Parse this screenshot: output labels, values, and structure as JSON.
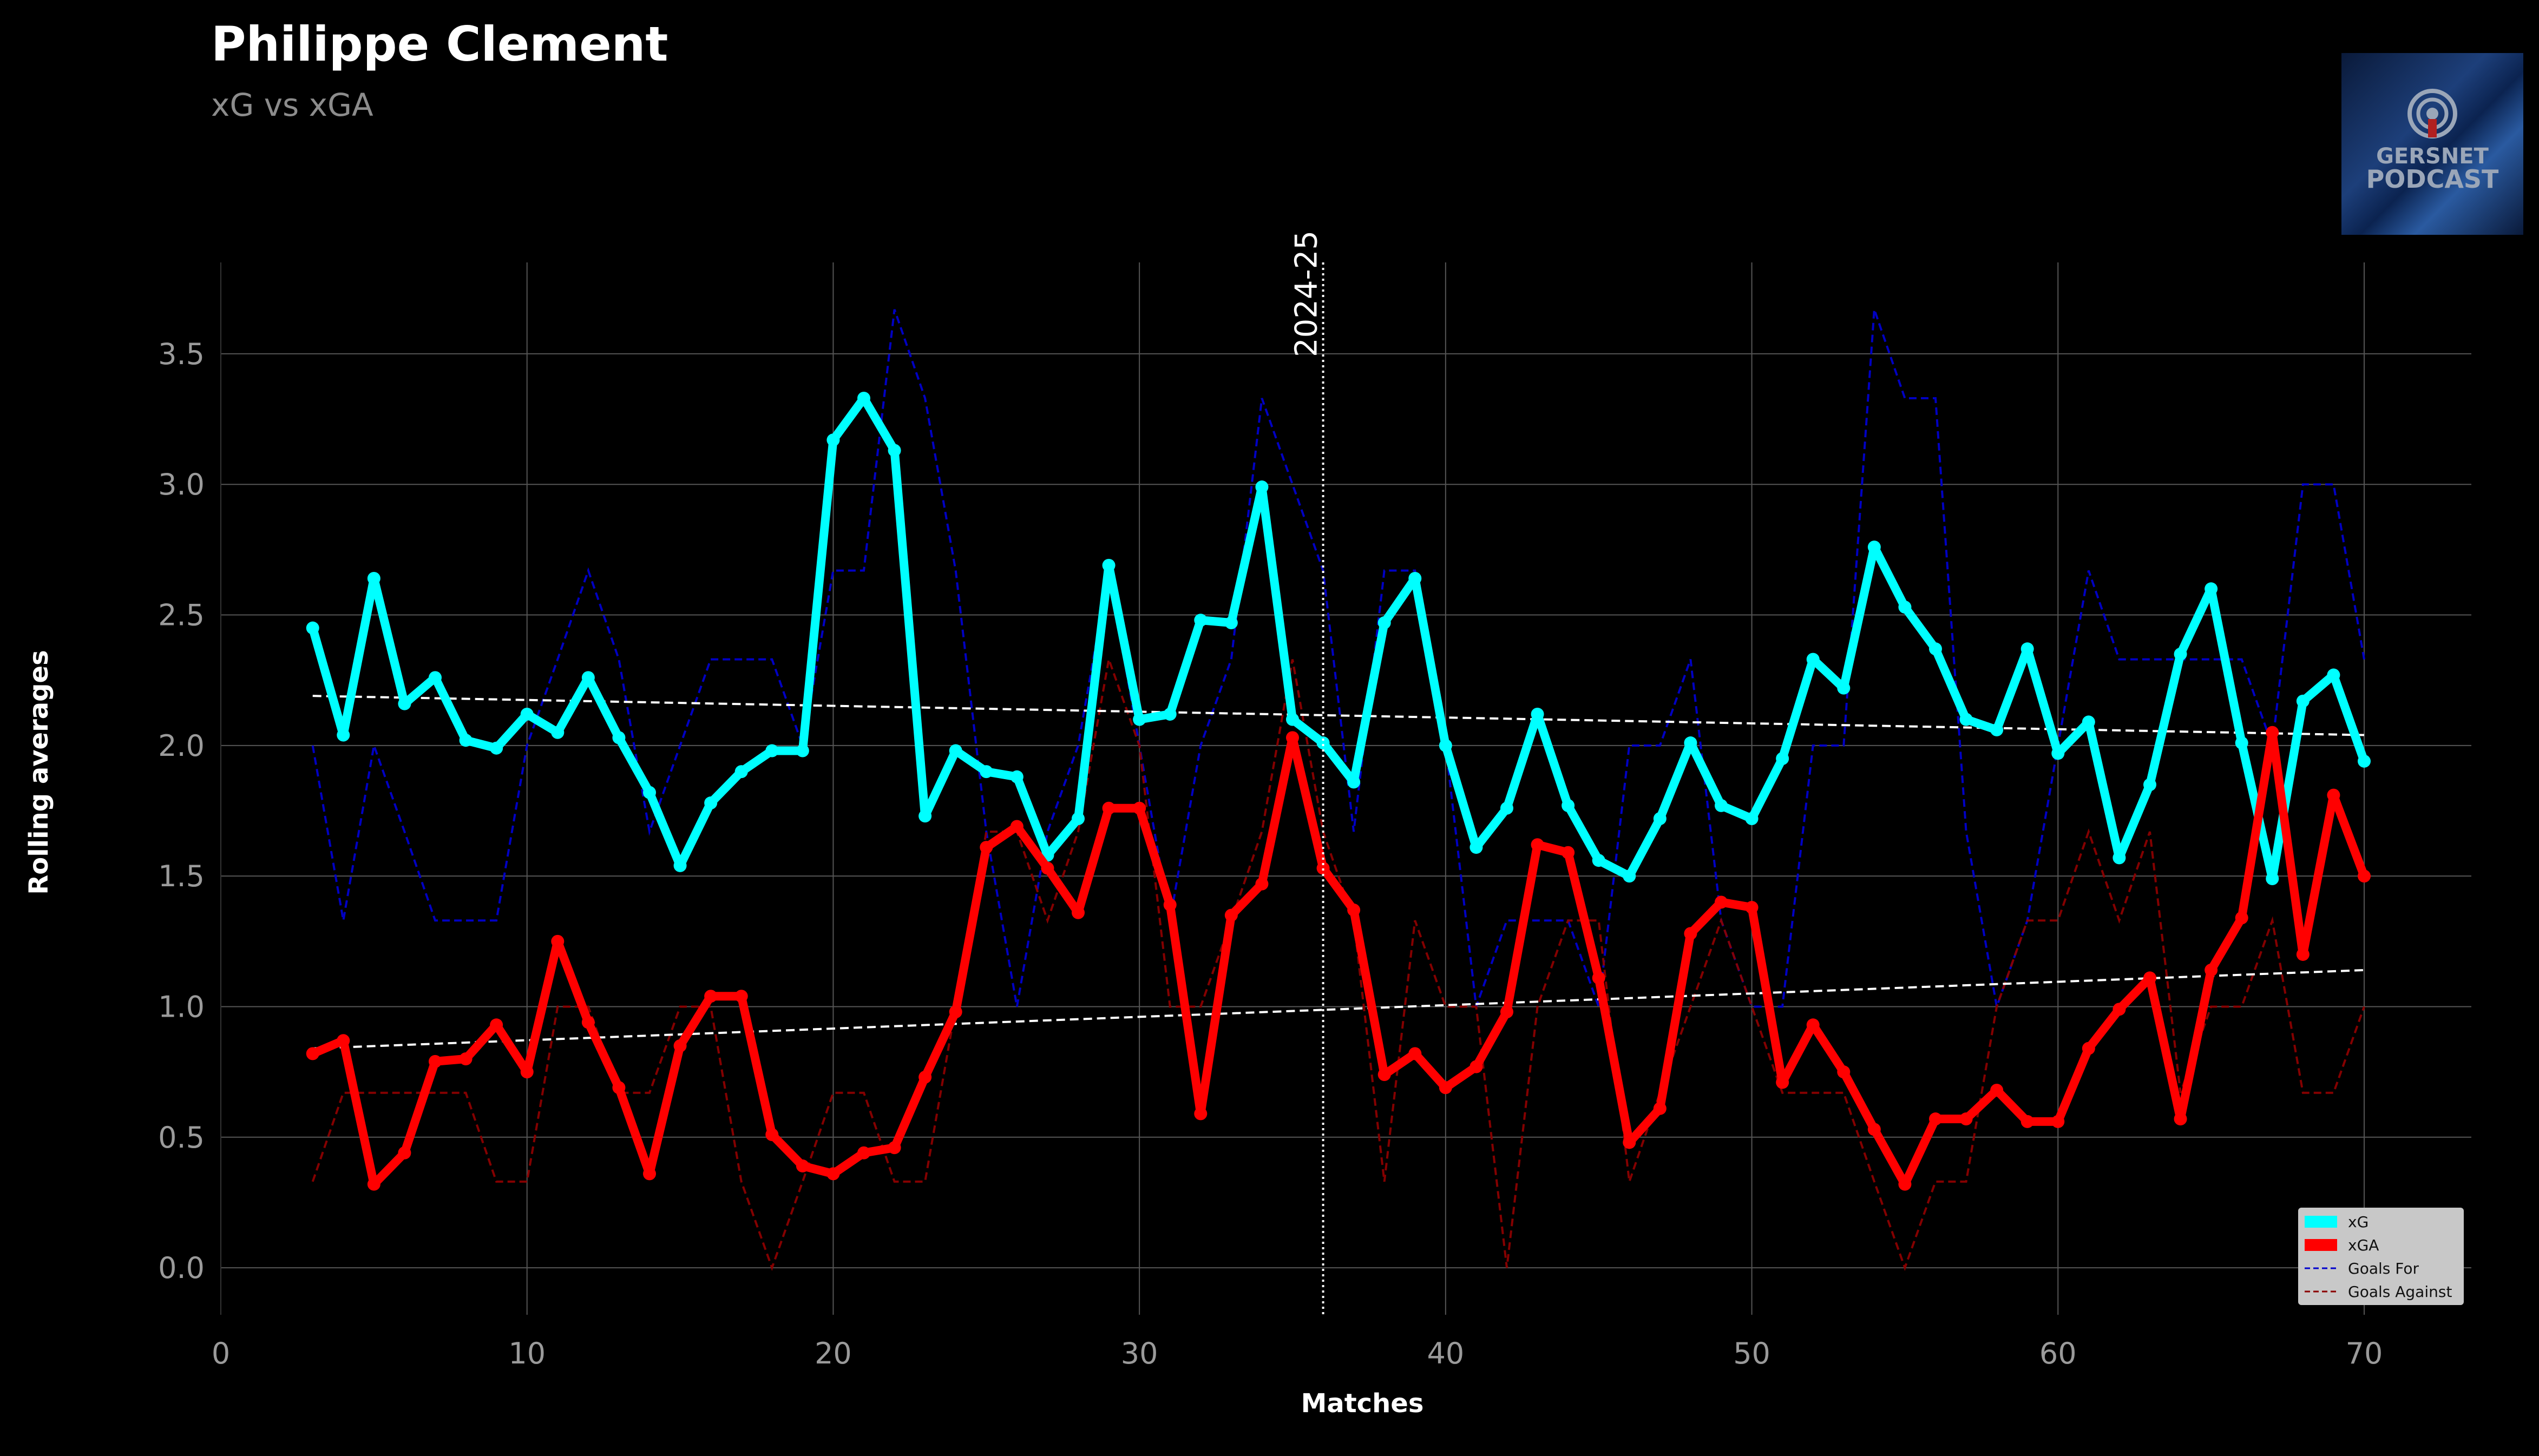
{
  "header": {
    "title": "Philippe Clement",
    "subtitle": "xG vs xGA"
  },
  "logo": {
    "line1": "GERSNET",
    "line2": "PODCAST",
    "icon": "podcast-microphone-icon"
  },
  "colors": {
    "background": "#000000",
    "xg": "#00ffff",
    "xga": "#ff0000",
    "goals_for": "#0000cd",
    "goals_against": "#8b0000",
    "trend": "#ffffff",
    "grid": "#555555",
    "tick": "#9a9a9a"
  },
  "chart_data": {
    "type": "line",
    "title": "Philippe Clement",
    "subtitle": "xG vs xGA",
    "xlabel": "Matches",
    "ylabel": "Rolling averages",
    "xlim": [
      0,
      73.5
    ],
    "ylim": [
      -0.18,
      3.85
    ],
    "xticks": [
      0,
      10,
      20,
      30,
      40,
      50,
      60,
      70
    ],
    "yticks": [
      0.0,
      0.5,
      1.0,
      1.5,
      2.0,
      2.5,
      3.0,
      3.5
    ],
    "grid": true,
    "legend_position": "bottom-right",
    "season_marker": {
      "x": 36,
      "label": "2024-25"
    },
    "x": [
      3,
      4,
      5,
      6,
      7,
      8,
      9,
      10,
      11,
      12,
      13,
      14,
      15,
      16,
      17,
      18,
      19,
      20,
      21,
      22,
      23,
      24,
      25,
      26,
      27,
      28,
      29,
      30,
      31,
      32,
      33,
      34,
      35,
      36,
      37,
      38,
      39,
      40,
      41,
      42,
      43,
      44,
      45,
      46,
      47,
      48,
      49,
      50,
      51,
      52,
      53,
      54,
      55,
      56,
      57,
      58,
      59,
      60,
      61,
      62,
      63,
      64,
      65,
      66,
      67,
      68,
      69,
      70
    ],
    "series": [
      {
        "name": "xG",
        "style": "thick-line-markers",
        "values": [
          2.45,
          2.04,
          2.64,
          2.16,
          2.26,
          2.02,
          1.99,
          2.12,
          2.05,
          2.26,
          2.03,
          1.82,
          1.54,
          1.78,
          1.9,
          1.98,
          1.98,
          3.17,
          3.33,
          3.13,
          1.73,
          1.98,
          1.9,
          1.88,
          1.58,
          1.72,
          2.69,
          2.1,
          2.12,
          2.48,
          2.47,
          2.99,
          2.1,
          2.01,
          1.86,
          2.47,
          2.64,
          2.0,
          1.61,
          1.76,
          2.12,
          1.77,
          1.56,
          1.5,
          1.72,
          2.01,
          1.77,
          1.72,
          1.95,
          2.33,
          2.22,
          2.76,
          2.53,
          2.37,
          2.1,
          2.06,
          2.37,
          1.97,
          2.09,
          1.57,
          1.85,
          2.35,
          2.6,
          2.01,
          1.49,
          2.17,
          2.27,
          1.94
        ]
      },
      {
        "name": "xGA",
        "style": "thick-line-markers",
        "values": [
          0.82,
          0.87,
          0.32,
          0.44,
          0.79,
          0.8,
          0.93,
          0.75,
          1.25,
          0.94,
          0.69,
          0.36,
          0.85,
          1.04,
          1.04,
          0.51,
          0.39,
          0.36,
          0.44,
          0.46,
          0.73,
          0.98,
          1.61,
          1.69,
          1.53,
          1.36,
          1.76,
          1.76,
          1.39,
          0.59,
          1.35,
          1.47,
          2.03,
          1.53,
          1.37,
          0.74,
          0.82,
          0.69,
          0.77,
          0.98,
          1.62,
          1.59,
          1.11,
          0.48,
          0.61,
          1.28,
          1.4,
          1.38,
          0.71,
          0.93,
          0.75,
          0.53,
          0.32,
          0.57,
          0.57,
          0.68,
          0.56,
          0.56,
          0.84,
          0.99,
          1.11,
          0.57,
          1.14,
          1.34,
          2.05,
          1.2,
          1.81,
          1.5
        ]
      },
      {
        "name": "Goals For",
        "style": "dashed",
        "values": [
          2.0,
          1.33,
          2.0,
          1.67,
          1.33,
          1.33,
          1.33,
          2.0,
          2.33,
          2.67,
          2.33,
          1.67,
          2.0,
          2.33,
          2.33,
          2.33,
          2.0,
          2.67,
          2.67,
          3.67,
          3.33,
          2.67,
          1.67,
          1.0,
          1.67,
          2.0,
          2.67,
          2.0,
          1.33,
          2.0,
          2.33,
          3.33,
          3.0,
          2.67,
          1.67,
          2.67,
          2.67,
          2.0,
          1.0,
          1.33,
          1.33,
          1.33,
          1.0,
          2.0,
          2.0,
          2.33,
          1.33,
          1.0,
          1.0,
          2.0,
          2.0,
          3.67,
          3.33,
          3.33,
          1.67,
          1.0,
          1.33,
          2.0,
          2.67,
          2.33,
          2.33,
          2.33,
          2.33,
          2.33,
          2.0,
          3.0,
          3.0,
          2.33
        ]
      },
      {
        "name": "Goals Against",
        "style": "dashed",
        "values": [
          0.33,
          0.67,
          0.67,
          0.67,
          0.67,
          0.67,
          0.33,
          0.33,
          1.0,
          1.0,
          0.67,
          0.67,
          1.0,
          1.0,
          0.33,
          0.0,
          0.33,
          0.67,
          0.67,
          0.33,
          0.33,
          1.0,
          1.67,
          1.67,
          1.33,
          1.67,
          2.33,
          2.0,
          1.0,
          1.0,
          1.33,
          1.67,
          2.33,
          1.67,
          1.33,
          0.33,
          1.33,
          1.0,
          1.0,
          0.0,
          1.0,
          1.33,
          1.33,
          0.33,
          0.67,
          1.0,
          1.33,
          1.0,
          0.67,
          0.67,
          0.67,
          0.33,
          0.0,
          0.33,
          0.33,
          1.0,
          1.33,
          1.33,
          1.67,
          1.33,
          1.67,
          0.67,
          1.0,
          1.0,
          1.33,
          0.67,
          0.67,
          1.0
        ]
      }
    ],
    "trendlines": [
      {
        "series": "xG",
        "start": [
          3,
          2.19
        ],
        "end": [
          70,
          2.04
        ]
      },
      {
        "series": "xGA",
        "start": [
          3,
          0.84
        ],
        "end": [
          70,
          1.14
        ]
      }
    ]
  }
}
